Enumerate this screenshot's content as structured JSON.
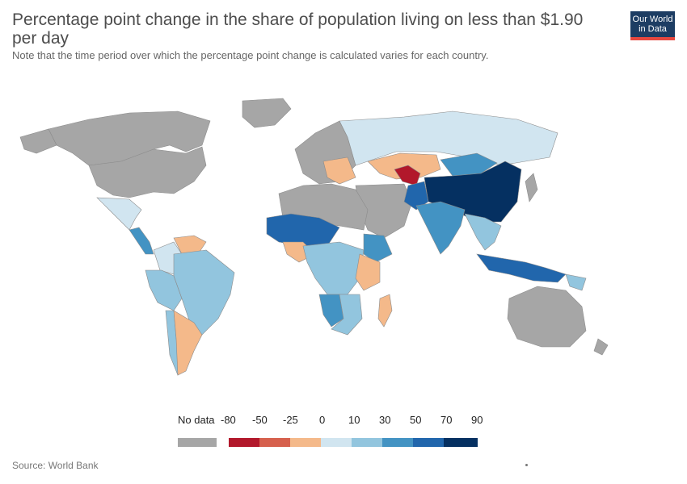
{
  "title": "Percentage point change in the share of population living on less than $1.90 per day",
  "subtitle": "Note that the time period over which the percentage point change is calculated varies for each country.",
  "logo": {
    "line1": "Our World",
    "line2": "in Data"
  },
  "source": "Source: World Bank",
  "colors": {
    "no_data": "#a6a6a6",
    "ocean": "#ffffff",
    "border": "#8c8c8c"
  },
  "legend": {
    "no_data_label": "No data",
    "ticks": [
      "-80",
      "-50",
      "-25",
      "0",
      "10",
      "30",
      "50",
      "70",
      "90"
    ],
    "bins": [
      {
        "range": "-80 to -50",
        "color": "#b2182b"
      },
      {
        "range": "-50 to -25",
        "color": "#d6604d"
      },
      {
        "range": "-25 to 0",
        "color": "#f4b98a"
      },
      {
        "range": "0 to 10",
        "color": "#d1e5f0"
      },
      {
        "range": "10 to 30",
        "color": "#92c5de"
      },
      {
        "range": "30 to 50",
        "color": "#4393c3"
      },
      {
        "range": "50 to 70",
        "color": "#2166ac"
      },
      {
        "range": "70 to 90",
        "color": "#053061"
      }
    ]
  },
  "regions": [
    {
      "name": "Canada",
      "color": "#a6a6a6"
    },
    {
      "name": "United States",
      "color": "#a6a6a6"
    },
    {
      "name": "Greenland",
      "color": "#a6a6a6"
    },
    {
      "name": "Mexico",
      "color": "#d1e5f0"
    },
    {
      "name": "Central America",
      "color": "#4393c3"
    },
    {
      "name": "Venezuela",
      "color": "#f4b98a"
    },
    {
      "name": "Colombia",
      "color": "#d1e5f0"
    },
    {
      "name": "Brazil",
      "color": "#92c5de"
    },
    {
      "name": "Peru-Bolivia",
      "color": "#92c5de"
    },
    {
      "name": "Argentina",
      "color": "#f4b98a"
    },
    {
      "name": "Chile",
      "color": "#92c5de"
    },
    {
      "name": "Russia",
      "color": "#d1e5f0"
    },
    {
      "name": "Kazakhstan",
      "color": "#f4b98a"
    },
    {
      "name": "Uzbekistan",
      "color": "#b2182b"
    },
    {
      "name": "China",
      "color": "#053061"
    },
    {
      "name": "Mongolia",
      "color": "#4393c3"
    },
    {
      "name": "India",
      "color": "#4393c3"
    },
    {
      "name": "Pakistan",
      "color": "#2166ac"
    },
    {
      "name": "Southeast Asia",
      "color": "#92c5de"
    },
    {
      "name": "Indonesia",
      "color": "#2166ac"
    },
    {
      "name": "Australia",
      "color": "#a6a6a6"
    },
    {
      "name": "Sahel",
      "color": "#2166ac"
    },
    {
      "name": "Nigeria",
      "color": "#f4b98a"
    },
    {
      "name": "Ethiopia",
      "color": "#4393c3"
    },
    {
      "name": "Central Africa",
      "color": "#92c5de"
    },
    {
      "name": "Namibia",
      "color": "#4393c3"
    },
    {
      "name": "Madagascar",
      "color": "#f4b98a"
    }
  ]
}
